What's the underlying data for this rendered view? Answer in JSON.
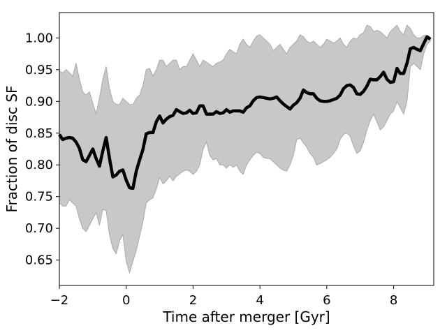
{
  "chart_data": {
    "type": "line",
    "title": "",
    "xlabel": "Time after merger [Gyr]",
    "ylabel": "Fraction of disc SF",
    "xlim": [
      -2,
      9.2
    ],
    "ylim": [
      0.61,
      1.04
    ],
    "xticks": [
      -2,
      0,
      2,
      4,
      6,
      8
    ],
    "xtick_labels": [
      "−2",
      "0",
      "2",
      "4",
      "6",
      "8"
    ],
    "yticks": [
      0.65,
      0.7,
      0.75,
      0.8,
      0.85,
      0.9,
      0.95,
      1.0
    ],
    "ytick_labels": [
      "0.65",
      "0.70",
      "0.75",
      "0.80",
      "0.85",
      "0.90",
      "0.95",
      "1.00"
    ],
    "grid": false,
    "legend": "none",
    "colors": {
      "median": "#000000",
      "band": "#c8c8c8",
      "band_edge": "#a8a8a8"
    },
    "series": [
      {
        "x": [
          -2.0,
          -1.9,
          -1.8,
          -1.7,
          -1.6,
          -1.5,
          -1.4,
          -1.3,
          -1.2,
          -1.1,
          -1.0,
          -0.9,
          -0.8,
          -0.7,
          -0.6,
          -0.5,
          -0.4,
          -0.3,
          -0.2,
          -0.1,
          0.0,
          0.1,
          0.2,
          0.3,
          0.4,
          0.5,
          0.6,
          0.7,
          0.8,
          0.9,
          1.0,
          1.1,
          1.2,
          1.3,
          1.4,
          1.5,
          1.6,
          1.7,
          1.8,
          1.9,
          2.0,
          2.1,
          2.2,
          2.3,
          2.4,
          2.5,
          2.6,
          2.7,
          2.8,
          2.9,
          3.0,
          3.1,
          3.2,
          3.3,
          3.4,
          3.5,
          3.6,
          3.7,
          3.8,
          3.9,
          4.0,
          4.1,
          4.2,
          4.3,
          4.4,
          4.5,
          4.6,
          4.7,
          4.8,
          4.9,
          5.0,
          5.1,
          5.2,
          5.3,
          5.4,
          5.5,
          5.6,
          5.7,
          5.8,
          5.9,
          6.0,
          6.1,
          6.2,
          6.3,
          6.4,
          6.5,
          6.6,
          6.7,
          6.8,
          6.9,
          7.0,
          7.1,
          7.2,
          7.3,
          7.4,
          7.5,
          7.6,
          7.7,
          7.8,
          7.9,
          8.0,
          8.1,
          8.2,
          8.3,
          8.4,
          8.5,
          8.6,
          8.7,
          8.8,
          8.9,
          9.0,
          9.1
        ],
        "values": [
          0.848,
          0.84,
          0.842,
          0.843,
          0.842,
          0.836,
          0.826,
          0.808,
          0.805,
          0.815,
          0.825,
          0.81,
          0.798,
          0.822,
          0.843,
          0.81,
          0.781,
          0.784,
          0.79,
          0.792,
          0.776,
          0.764,
          0.763,
          0.79,
          0.808,
          0.824,
          0.849,
          0.851,
          0.851,
          0.868,
          0.877,
          0.866,
          0.872,
          0.876,
          0.878,
          0.887,
          0.884,
          0.881,
          0.882,
          0.886,
          0.881,
          0.882,
          0.893,
          0.893,
          0.88,
          0.88,
          0.88,
          0.884,
          0.881,
          0.882,
          0.887,
          0.883,
          0.885,
          0.885,
          0.885,
          0.883,
          0.89,
          0.893,
          0.901,
          0.906,
          0.907,
          0.906,
          0.905,
          0.904,
          0.905,
          0.907,
          0.901,
          0.896,
          0.892,
          0.888,
          0.894,
          0.898,
          0.905,
          0.918,
          0.914,
          0.912,
          0.912,
          0.905,
          0.901,
          0.9,
          0.9,
          0.901,
          0.903,
          0.905,
          0.91,
          0.92,
          0.925,
          0.926,
          0.922,
          0.912,
          0.911,
          0.916,
          0.924,
          0.935,
          0.934,
          0.934,
          0.939,
          0.946,
          0.935,
          0.93,
          0.931,
          0.952,
          0.944,
          0.944,
          0.96,
          0.983,
          0.985,
          0.982,
          0.98,
          0.991,
          1.002,
          0.998
        ]
      }
    ],
    "band": {
      "x": [
        -2.0,
        -1.9,
        -1.8,
        -1.7,
        -1.6,
        -1.5,
        -1.4,
        -1.3,
        -1.2,
        -1.1,
        -1.0,
        -0.9,
        -0.8,
        -0.7,
        -0.6,
        -0.5,
        -0.4,
        -0.3,
        -0.2,
        -0.1,
        0.0,
        0.1,
        0.2,
        0.3,
        0.4,
        0.5,
        0.6,
        0.7,
        0.8,
        0.9,
        1.0,
        1.1,
        1.2,
        1.3,
        1.4,
        1.5,
        1.6,
        1.7,
        1.8,
        1.9,
        2.0,
        2.1,
        2.2,
        2.3,
        2.4,
        2.5,
        2.6,
        2.7,
        2.8,
        2.9,
        3.0,
        3.1,
        3.2,
        3.3,
        3.4,
        3.5,
        3.6,
        3.7,
        3.8,
        3.9,
        4.0,
        4.1,
        4.2,
        4.3,
        4.4,
        4.5,
        4.6,
        4.7,
        4.8,
        4.9,
        5.0,
        5.1,
        5.2,
        5.3,
        5.4,
        5.5,
        5.6,
        5.7,
        5.8,
        5.9,
        6.0,
        6.1,
        6.2,
        6.3,
        6.4,
        6.5,
        6.6,
        6.7,
        6.8,
        6.9,
        7.0,
        7.1,
        7.2,
        7.3,
        7.4,
        7.5,
        7.6,
        7.7,
        7.8,
        7.9,
        8.0,
        8.1,
        8.2,
        8.3,
        8.4,
        8.5,
        8.6,
        8.7,
        8.8,
        8.9,
        9.0,
        9.1
      ],
      "upper": [
        0.948,
        0.945,
        0.95,
        0.945,
        0.94,
        0.96,
        0.935,
        0.915,
        0.91,
        0.915,
        0.897,
        0.88,
        0.905,
        0.935,
        0.955,
        0.92,
        0.9,
        0.895,
        0.895,
        0.905,
        0.9,
        0.895,
        0.895,
        0.905,
        0.91,
        0.925,
        0.95,
        0.952,
        0.94,
        0.95,
        0.965,
        0.965,
        0.955,
        0.96,
        0.965,
        0.965,
        0.95,
        0.955,
        0.955,
        0.965,
        0.975,
        0.965,
        0.955,
        0.965,
        0.962,
        0.958,
        0.955,
        0.96,
        0.962,
        0.965,
        0.975,
        0.982,
        0.978,
        0.975,
        0.99,
        0.998,
        0.99,
        0.985,
        0.995,
        1.003,
        1.005,
        1.0,
        0.995,
        0.99,
        0.98,
        0.985,
        0.99,
        0.982,
        0.975,
        0.985,
        0.99,
        0.995,
        1.005,
        1.002,
        0.995,
        0.992,
        0.995,
        0.99,
        0.985,
        0.99,
        0.998,
        0.995,
        0.992,
        0.995,
        1.0,
        0.99,
        0.985,
        0.995,
        1.0,
        0.998,
        1.005,
        1.008,
        1.02,
        1.018,
        1.01,
        1.012,
        1.01,
        1.005,
        1.0,
        1.01,
        1.015,
        1.02,
        1.01,
        1.005,
        1.02,
        1.015,
        1.005,
        1.0,
        1.0,
        1.004,
        1.004,
        1.0
      ],
      "lower": [
        0.74,
        0.735,
        0.735,
        0.745,
        0.74,
        0.735,
        0.715,
        0.7,
        0.695,
        0.705,
        0.715,
        0.725,
        0.705,
        0.73,
        0.728,
        0.69,
        0.668,
        0.66,
        0.68,
        0.69,
        0.648,
        0.63,
        0.648,
        0.665,
        0.688,
        0.71,
        0.74,
        0.745,
        0.748,
        0.762,
        0.78,
        0.77,
        0.775,
        0.782,
        0.775,
        0.782,
        0.786,
        0.79,
        0.792,
        0.79,
        0.785,
        0.79,
        0.8,
        0.825,
        0.836,
        0.815,
        0.808,
        0.81,
        0.8,
        0.8,
        0.795,
        0.8,
        0.796,
        0.8,
        0.79,
        0.785,
        0.8,
        0.808,
        0.815,
        0.82,
        0.818,
        0.812,
        0.81,
        0.81,
        0.805,
        0.8,
        0.795,
        0.792,
        0.79,
        0.8,
        0.815,
        0.84,
        0.842,
        0.835,
        0.828,
        0.818,
        0.812,
        0.8,
        0.802,
        0.805,
        0.808,
        0.812,
        0.818,
        0.825,
        0.84,
        0.848,
        0.85,
        0.845,
        0.83,
        0.818,
        0.822,
        0.835,
        0.855,
        0.87,
        0.88,
        0.868,
        0.855,
        0.86,
        0.87,
        0.88,
        0.885,
        0.9,
        0.89,
        0.88,
        0.9,
        0.955,
        0.96,
        0.955,
        0.95,
        0.975,
        0.99,
        0.995
      ]
    }
  }
}
